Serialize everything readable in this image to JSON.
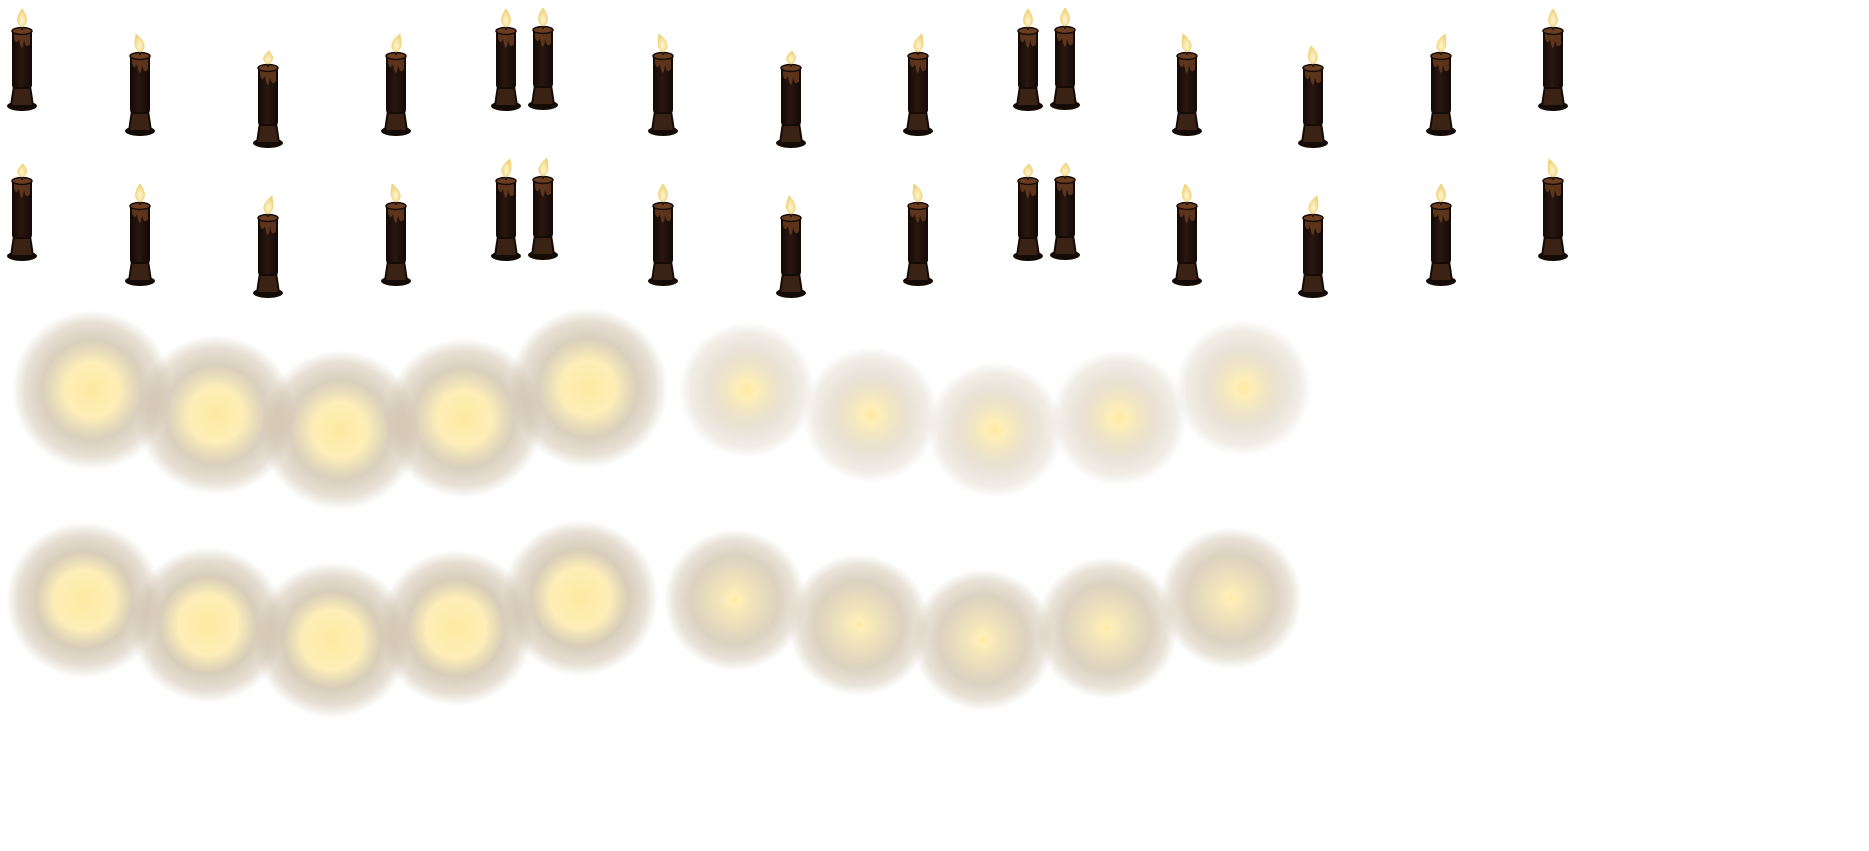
{
  "sheet": {
    "background": "#ffffff",
    "candle_rows": [
      {
        "name": "candles-frame-a",
        "slots": [
          {
            "count": 1,
            "flame": "tall"
          },
          {
            "count": 1,
            "flame": "lean-left"
          },
          {
            "count": 1,
            "flame": "short"
          },
          {
            "count": 1,
            "flame": "lean-right"
          },
          {
            "count": 2,
            "flame": "tall"
          },
          {
            "count": 1,
            "flame": "lean-left"
          },
          {
            "count": 1,
            "flame": "short"
          },
          {
            "count": 1,
            "flame": "lean-right"
          },
          {
            "count": 2,
            "flame": "tall"
          },
          {
            "count": 1,
            "flame": "lean-left"
          },
          {
            "count": 1,
            "flame": "curl"
          },
          {
            "count": 1,
            "flame": "lean-right"
          },
          {
            "count": 1,
            "flame": "tall"
          }
        ]
      },
      {
        "name": "candles-frame-b",
        "slots": [
          {
            "count": 1,
            "flame": "short"
          },
          {
            "count": 1,
            "flame": "tall"
          },
          {
            "count": 1,
            "flame": "lean-right"
          },
          {
            "count": 1,
            "flame": "lean-left"
          },
          {
            "count": 2,
            "flame": "lean-right"
          },
          {
            "count": 1,
            "flame": "tall"
          },
          {
            "count": 1,
            "flame": "curl"
          },
          {
            "count": 1,
            "flame": "lean-left"
          },
          {
            "count": 2,
            "flame": "short"
          },
          {
            "count": 1,
            "flame": "curl"
          },
          {
            "count": 1,
            "flame": "lean-right"
          },
          {
            "count": 1,
            "flame": "tall"
          },
          {
            "count": 1,
            "flame": "lean-left"
          }
        ]
      }
    ],
    "glow_rows": [
      {
        "name": "glow-frame-a",
        "groups": [
          {
            "name": "glow-group-wide",
            "count": 5,
            "core_strength": 0.75,
            "halo_opacity": 0.95
          },
          {
            "name": "glow-group-faint",
            "count": 5,
            "core_strength": 0.3,
            "halo_opacity": 0.55
          }
        ]
      },
      {
        "name": "glow-frame-b",
        "groups": [
          {
            "name": "glow-group-wide",
            "count": 5,
            "core_strength": 0.85,
            "halo_opacity": 1.0
          },
          {
            "name": "glow-group-pin",
            "count": 5,
            "core_strength": 0.15,
            "halo_opacity": 0.9
          }
        ]
      }
    ],
    "colors": {
      "candle_body": "#2a1710",
      "candle_shadow": "#140a06",
      "candle_wax": "#6b3d21",
      "candle_base": "#3a2215",
      "flame_outer": "#f0d27a",
      "flame_inner": "#fff6cf",
      "glow_core": "#fde9a0",
      "glow_halo": "#c7b79c"
    }
  }
}
